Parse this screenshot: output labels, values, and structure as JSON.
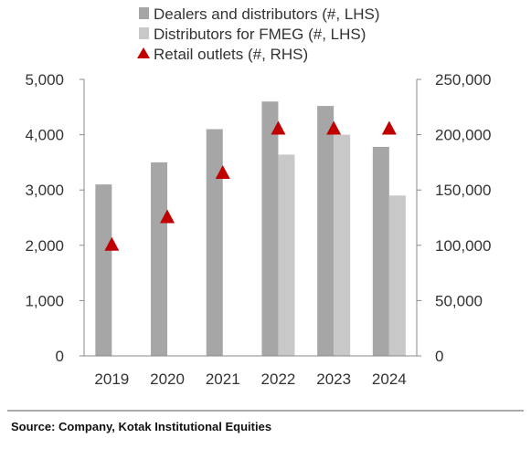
{
  "chart_data": {
    "type": "bar",
    "categories": [
      "2019",
      "2020",
      "2021",
      "2022",
      "2023",
      "2024"
    ],
    "series": [
      {
        "name": "Dealers and distributors (#, LHS)",
        "type": "bar",
        "axis": "left",
        "color": "#a6a6a6",
        "values": [
          3100,
          3500,
          4100,
          4600,
          4520,
          3780
        ]
      },
      {
        "name": "Distributors for FMEG (#, LHS)",
        "type": "bar",
        "axis": "left",
        "color": "#c8c8c8",
        "values": [
          null,
          null,
          null,
          3640,
          4000,
          2900
        ]
      },
      {
        "name": "Retail outlets (#, RHS)",
        "type": "marker",
        "marker": "triangle",
        "axis": "right",
        "color": "#c00000",
        "values": [
          100000,
          125000,
          165000,
          205000,
          205000,
          205000
        ]
      }
    ],
    "y_left": {
      "lim": [
        0,
        5000
      ],
      "ticks": [
        "0",
        "1,000",
        "2,000",
        "3,000",
        "4,000",
        "5,000"
      ]
    },
    "y_right": {
      "lim": [
        0,
        250000
      ],
      "ticks": [
        "0",
        "50,000",
        "100,000",
        "150,000",
        "200,000",
        "250,000"
      ]
    },
    "title": "",
    "xlabel": "",
    "ylabel": "",
    "grid": false,
    "legend_position": "top"
  },
  "source": "Source: Company, Kotak Institutional Equities"
}
